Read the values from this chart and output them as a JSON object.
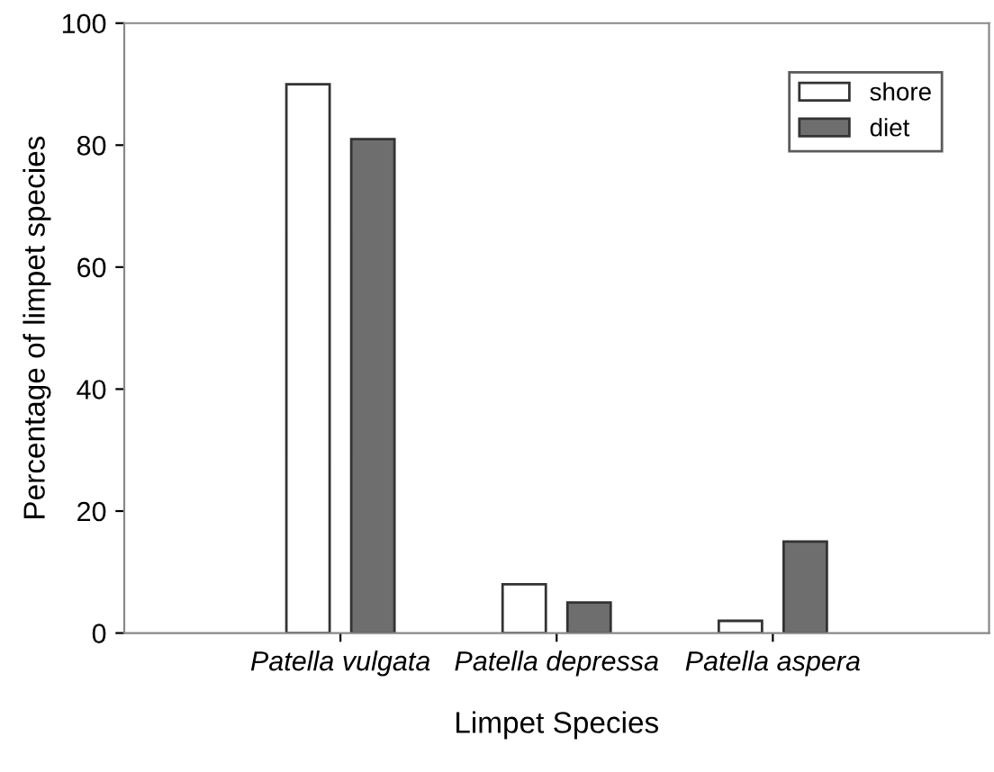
{
  "chart_data": {
    "type": "bar",
    "xlabel": "Limpet Species",
    "ylabel": "Percentage of limpet species",
    "categories": [
      "Patella vulgata",
      "Patella depressa",
      "Patella aspera"
    ],
    "series": [
      {
        "name": "shore",
        "color": "#ffffff",
        "values": [
          90,
          8,
          2
        ]
      },
      {
        "name": "diet",
        "color": "#6e6e6e",
        "values": [
          81,
          5,
          15
        ]
      }
    ],
    "ylim": [
      0,
      100
    ],
    "yticks": [
      0,
      20,
      40,
      60,
      80,
      100
    ],
    "grid": false,
    "legend": "top right"
  }
}
